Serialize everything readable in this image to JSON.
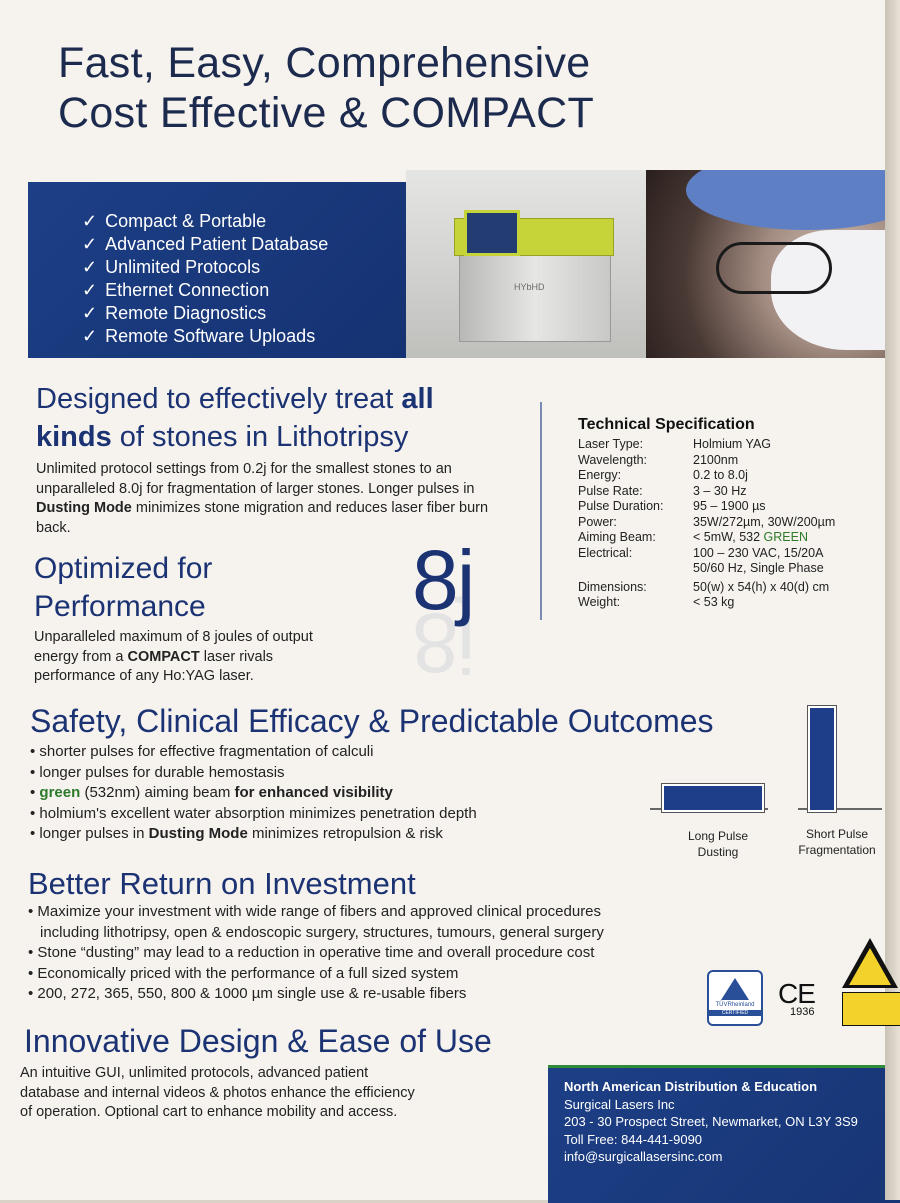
{
  "colors": {
    "navy": "#1b3273",
    "brand_blue": "#1d3f86",
    "green": "#2d7a2a",
    "paper": "#f6f3ef"
  },
  "headline": {
    "line1": "Fast, Easy, Comprehensive",
    "line2": "Cost Effective & COMPACT"
  },
  "banner": {
    "features": [
      "Compact & Portable",
      "Advanced Patient Database",
      "Unlimited Protocols",
      "Ethernet Connection",
      "Remote Diagnostics",
      "Remote Software Uploads"
    ],
    "device_label": "HYbHD",
    "check_glyph": "✓"
  },
  "designed": {
    "h_part1": "Designed to effectively treat ",
    "h_bold1": "all kinds",
    "h_part2": " of stones in Lithotripsy",
    "p_part1": "Unlimited protocol settings from 0.2j for the smallest stones to an unparalleled 8.0j for fragmentation of larger stones. Longer pulses in ",
    "p_bold": "Dusting Mode",
    "p_part2": " minimizes stone migration and reduces laser fiber burn back."
  },
  "performance": {
    "heading": "Optimized for Performance",
    "p_part1": "Unparalleled maximum of 8 joules of output energy from a ",
    "p_bold": "COMPACT",
    "p_part2": " laser rivals performance of any Ho:YAG laser.",
    "big_value": "8j"
  },
  "spec": {
    "title": "Technical Specification",
    "rows": [
      {
        "k": "Laser Type:",
        "v": "Holmium YAG"
      },
      {
        "k": "Wavelength:",
        "v": "2100nm"
      },
      {
        "k": "Energy:",
        "v": "0.2 to 8.0j"
      },
      {
        "k": "Pulse Rate:",
        "v": "3 – 30 Hz"
      },
      {
        "k": "Pulse Duration:",
        "v": "95 – 1900 µs"
      },
      {
        "k": "Power:",
        "v": "35W/272µm, 30W/200µm"
      },
      {
        "k": "Aiming Beam:",
        "v": "< 5mW, 532 ",
        "v_green": "GREEN"
      },
      {
        "k": "Electrical:",
        "v": "100 – 230 VAC, 15/20A"
      },
      {
        "k": "",
        "v": "50/60 Hz, Single Phase"
      },
      {
        "k": "Dimensions:",
        "v": "50(w) x 54(h) x 40(d) cm"
      },
      {
        "k": "Weight:",
        "v": "< 53 kg"
      }
    ]
  },
  "safety": {
    "heading": "Safety, Clinical Efficacy & Predictable Outcomes",
    "b1": "• shorter pulses for effective fragmentation of calculi",
    "b2": "• longer pulses for durable hemostasis",
    "b3_prefix": "• ",
    "b3_green": "green",
    "b3_mid": " (532nm) aiming beam ",
    "b3_bold": "for enhanced visibility",
    "b4": "• holmium's excellent water absorption minimizes penetration depth",
    "b5_prefix": "• longer pulses in ",
    "b5_bold": "Dusting Mode",
    "b5_suffix": " minimizes retropulsion & risk",
    "pulse_long_l1": "Long Pulse",
    "pulse_long_l2": "Dusting",
    "pulse_short_l1": "Short Pulse",
    "pulse_short_l2": "Fragmentation"
  },
  "roi": {
    "heading": "Better Return on Investment",
    "items": [
      "• Maximize your investment with wide range of fibers and approved clinical procedures",
      "   including lithotripsy, open & endoscopic surgery, structures, tumours, general surgery",
      "• Stone “dusting” may lead to a reduction in operative time and overall procedure cost",
      "• Economically priced with the performance of a full sized system",
      "• 200, 272, 365, 550, 800 & 1000 µm single use & re-usable fibers"
    ]
  },
  "certs": {
    "tuv": "TÜVRheinland",
    "tuv_sub": "CERTIFIED",
    "ce": "CE",
    "ce_num": "1936"
  },
  "innovative": {
    "heading": "Innovative Design & Ease of Use",
    "paragraph": "An intuitive GUI, unlimited protocols, advanced patient database and internal videos & photos enhance the efficiency of operation. Optional cart to enhance mobility and access."
  },
  "contact": {
    "title": "North American Distribution & Education",
    "company": "Surgical Lasers Inc",
    "address": "203 - 30 Prospect Street, Newmarket,  ON L3Y 3S9",
    "toll_free": "Toll Free: 844-441-9090",
    "email": "info@surgicallasersinc.com"
  }
}
